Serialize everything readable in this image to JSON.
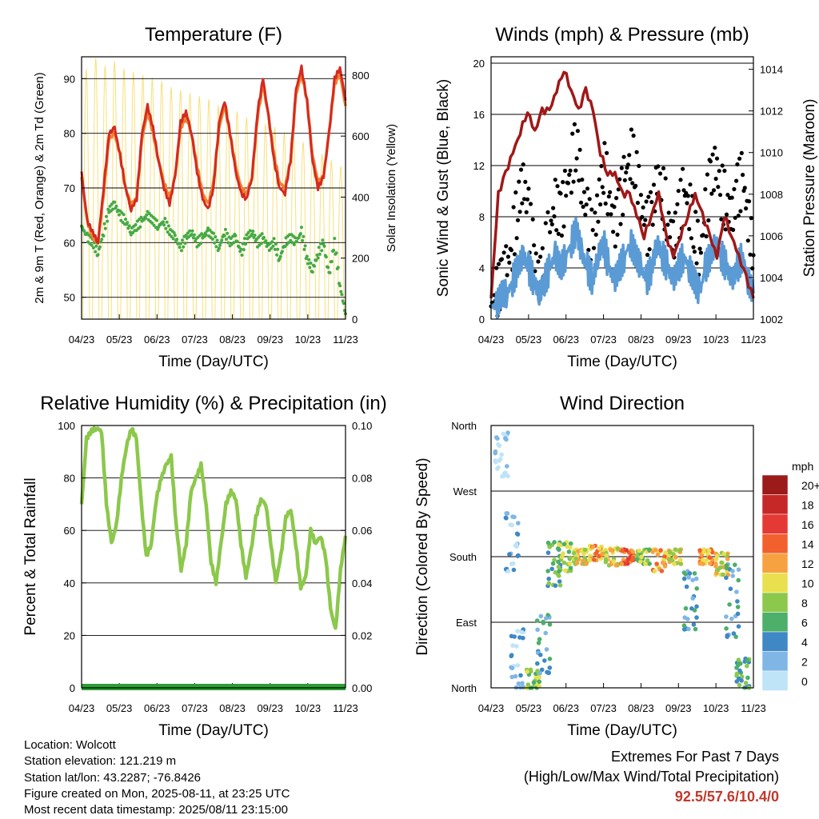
{
  "colors": {
    "red": "#d42a20",
    "orange": "#f08030",
    "green": "#44aa44",
    "yellow": "#f7e07a",
    "blue": "#5b9bd5",
    "black": "#000000",
    "maroon": "#a01818",
    "rh": "#8cc84b",
    "precip": "#2e9e36",
    "grid": "#000000",
    "extreme": "#c0392b"
  },
  "chart_data": [
    {
      "type": "line",
      "title": "Temperature (F)",
      "xlabel": "Time (Day/UTC)",
      "ylabel": "2m & 9m T (Red, Orange) & 2m Td (Green)",
      "y2label": "Solar Insolation (Yellow)",
      "x_ticks": [
        "04/23",
        "05/23",
        "06/23",
        "07/23",
        "08/23",
        "09/23",
        "10/23",
        "11/23"
      ],
      "ylim": [
        46,
        94
      ],
      "y_ticks": [
        50,
        60,
        70,
        80,
        90
      ],
      "y2lim": [
        0,
        860
      ],
      "y2_ticks": [
        0,
        200,
        400,
        600,
        800
      ],
      "grid": true,
      "series": [
        {
          "name": "2m T",
          "color": "red",
          "values": [
            73,
            64,
            62,
            60,
            70,
            80,
            81,
            76,
            70,
            66,
            68,
            80,
            85,
            81,
            75,
            70,
            67,
            72,
            82,
            84,
            80,
            73,
            68,
            66,
            70,
            82,
            86,
            80,
            73,
            69,
            68,
            72,
            84,
            90,
            83,
            75,
            70,
            69,
            75,
            88,
            92,
            86,
            75,
            70,
            72,
            80,
            90,
            92,
            86
          ]
        },
        {
          "name": "9m T",
          "color": "orange",
          "values": [
            72,
            64,
            61,
            60,
            69,
            79,
            80,
            76,
            70,
            67,
            68,
            79,
            84,
            80,
            75,
            71,
            68,
            72,
            81,
            83,
            80,
            74,
            69,
            67,
            71,
            81,
            85,
            80,
            74,
            70,
            69,
            72,
            83,
            89,
            83,
            76,
            71,
            70,
            75,
            87,
            91,
            86,
            76,
            71,
            72,
            80,
            89,
            91,
            85
          ]
        },
        {
          "name": "2m Td",
          "color": "green",
          "values": [
            63,
            61,
            60,
            58,
            62,
            66,
            67,
            65,
            64,
            62,
            63,
            64,
            65,
            64,
            63,
            64,
            62,
            61,
            59,
            61,
            62,
            60,
            61,
            62,
            61,
            59,
            62,
            60,
            61,
            58,
            61,
            62,
            60,
            61,
            59,
            60,
            57,
            60,
            61,
            60,
            62,
            57,
            55,
            58,
            60,
            54,
            60,
            52,
            47
          ]
        },
        {
          "name": "Solar Insolation",
          "color": "yellow",
          "axis": "y2",
          "peaks": [
            820,
            855,
            830,
            845,
            820,
            810,
            800,
            790,
            780,
            760,
            750,
            740,
            730,
            720,
            700,
            690,
            680,
            660,
            650,
            640,
            630,
            610,
            600,
            580,
            560,
            540,
            520,
            500
          ]
        }
      ]
    },
    {
      "type": "line",
      "title": "Winds (mph) & Pressure (mb)",
      "xlabel": "Time (Day/UTC)",
      "ylabel": "Sonic Wind & Gust (Blue, Black)",
      "y2label": "Station Pressure (Maroon)",
      "x_ticks": [
        "04/23",
        "05/23",
        "06/23",
        "07/23",
        "08/23",
        "09/23",
        "10/23",
        "11/23"
      ],
      "ylim": [
        0,
        20.5
      ],
      "y_ticks": [
        0,
        4,
        8,
        12,
        16,
        20
      ],
      "y2lim": [
        1002,
        1014.6
      ],
      "y2_ticks": [
        1002,
        1004,
        1006,
        1008,
        1010,
        1012,
        1014
      ],
      "grid": true,
      "series": [
        {
          "name": "Sonic Wind",
          "color": "blue",
          "values": [
            1,
            1,
            2,
            2,
            3,
            4,
            5,
            4,
            3,
            2,
            3,
            4,
            5,
            4,
            5,
            6,
            7,
            5,
            4,
            3,
            5,
            6,
            4,
            3,
            4,
            5,
            6,
            5,
            4,
            3,
            4,
            6,
            5,
            4,
            3,
            4,
            5,
            4,
            3,
            2,
            4,
            5,
            6,
            5,
            4,
            3,
            4,
            5,
            3,
            2
          ]
        },
        {
          "name": "Gust",
          "color": "black",
          "values": [
            1,
            2,
            3,
            4,
            6,
            9,
            11,
            8,
            5,
            3,
            5,
            7,
            9,
            8,
            10,
            12,
            14,
            10,
            8,
            6,
            9,
            12,
            10,
            7,
            9,
            11,
            13,
            12,
            9,
            7,
            8,
            11,
            10,
            8,
            6,
            8,
            10,
            9,
            7,
            5,
            8,
            11,
            12,
            10,
            9,
            8,
            10,
            11,
            8,
            5
          ]
        },
        {
          "name": "Station Pressure",
          "color": "maroon",
          "axis": "y2",
          "values": [
            1003,
            1008,
            1009,
            1010,
            1011,
            1012,
            1011,
            1012,
            1012,
            1013,
            1014,
            1013,
            1012,
            1013,
            1012,
            1010,
            1009,
            1009,
            1008,
            1008,
            1007,
            1006,
            1007,
            1008,
            1006,
            1005,
            1006,
            1007,
            1008,
            1007,
            1006,
            1005,
            1007,
            1006,
            1005,
            1004,
            1003
          ]
        }
      ]
    },
    {
      "type": "line",
      "title": "Relative Humidity (%) & Precipitation (in)",
      "xlabel": "Time (Day/UTC)",
      "ylabel": "Percent & Total Rainfall",
      "x_ticks": [
        "04/23",
        "05/23",
        "06/23",
        "07/23",
        "08/23",
        "09/23",
        "10/23",
        "11/23"
      ],
      "ylim": [
        0,
        100
      ],
      "y_ticks": [
        0,
        20,
        40,
        60,
        80,
        100
      ],
      "y2lim": [
        0,
        0.1
      ],
      "y2_ticks": [
        "0.00",
        "0.02",
        "0.04",
        "0.06",
        "0.08",
        "0.10"
      ],
      "grid": true,
      "series": [
        {
          "name": "RH",
          "color": "rh",
          "values": [
            70,
            95,
            98,
            99,
            98,
            70,
            55,
            62,
            80,
            92,
            99,
            95,
            70,
            50,
            55,
            72,
            80,
            85,
            88,
            62,
            45,
            55,
            75,
            80,
            85,
            70,
            48,
            40,
            55,
            70,
            75,
            72,
            55,
            42,
            52,
            65,
            72,
            70,
            55,
            40,
            50,
            65,
            68,
            55,
            38,
            42,
            60,
            55,
            58,
            50,
            30,
            22,
            45,
            58
          ]
        },
        {
          "name": "Total Precipitation",
          "color": "precip",
          "axis": "y2",
          "values": [
            0,
            0,
            0,
            0,
            0,
            0,
            0,
            0
          ]
        }
      ]
    },
    {
      "type": "scatter",
      "title": "Wind Direction",
      "xlabel": "Time (Day/UTC)",
      "ylabel": "Direction (Colored By Speed)",
      "x_ticks": [
        "04/23",
        "05/23",
        "06/23",
        "07/23",
        "08/23",
        "09/23",
        "10/23",
        "11/23"
      ],
      "y_ticks": [
        "North",
        "East",
        "South",
        "West",
        "North"
      ],
      "ylim": [
        0,
        360
      ],
      "grid": true,
      "colorbar": {
        "title": "mph",
        "labels": [
          "20+",
          "18",
          "16",
          "14",
          "12",
          "10",
          "8",
          "6",
          "4",
          "2",
          "0"
        ],
        "colors": [
          "#9b1b1b",
          "#c62828",
          "#e53935",
          "#f2602e",
          "#f7a240",
          "#e9e04f",
          "#8cc84b",
          "#4caf6a",
          "#3f88c5",
          "#7fb6e6",
          "#bfe3f7"
        ]
      },
      "clusters": [
        {
          "day": 2,
          "dir": 320,
          "spread": 30,
          "speed": 0
        },
        {
          "day": 4,
          "dir": 200,
          "spread": 40,
          "speed": 1
        },
        {
          "day": 5,
          "dir": 40,
          "spread": 40,
          "speed": 1
        },
        {
          "day": 8,
          "dir": 10,
          "spread": 15,
          "speed": 4
        },
        {
          "day": 10,
          "dir": 60,
          "spread": 40,
          "speed": 2
        },
        {
          "day": 12,
          "dir": 170,
          "spread": 30,
          "speed": 3
        },
        {
          "day": 14,
          "dir": 180,
          "spread": 20,
          "speed": 4
        },
        {
          "day": 17,
          "dir": 180,
          "spread": 10,
          "speed": 5
        },
        {
          "day": 20,
          "dir": 185,
          "spread": 10,
          "speed": 6
        },
        {
          "day": 23,
          "dir": 180,
          "spread": 12,
          "speed": 5
        },
        {
          "day": 26,
          "dir": 180,
          "spread": 10,
          "speed": 7
        },
        {
          "day": 29,
          "dir": 180,
          "spread": 10,
          "speed": 4
        },
        {
          "day": 32,
          "dir": 175,
          "spread": 15,
          "speed": 6
        },
        {
          "day": 35,
          "dir": 180,
          "spread": 10,
          "speed": 5
        },
        {
          "day": 38,
          "dir": 120,
          "spread": 40,
          "speed": 2
        },
        {
          "day": 41,
          "dir": 180,
          "spread": 10,
          "speed": 6
        },
        {
          "day": 44,
          "dir": 170,
          "spread": 15,
          "speed": 5
        },
        {
          "day": 46,
          "dir": 120,
          "spread": 50,
          "speed": 2
        },
        {
          "day": 48,
          "dir": 20,
          "spread": 20,
          "speed": 3
        }
      ]
    }
  ],
  "info": {
    "location": "Location: Wolcott",
    "elevation": "Station elevation: 121.219 m",
    "latlon": "Station lat/lon: 43.2287; -76.8426",
    "created": "Figure created on Mon, 2025-08-11, at 23:25 UTC",
    "timestamp": "Most recent data timestamp: 2025/08/11 23:15:00"
  },
  "extremes": {
    "title": "Extremes For Past 7 Days",
    "subtitle": "(High/Low/Max Wind/Total Precipitation)",
    "value": "92.5/57.6/10.4/0"
  }
}
